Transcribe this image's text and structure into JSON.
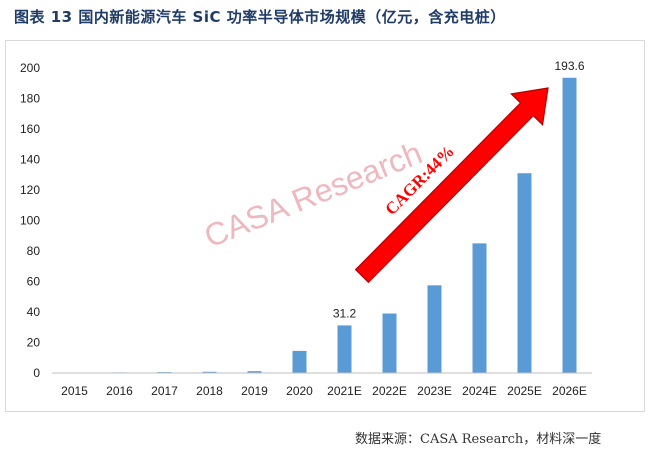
{
  "title": "图表 13 国内新能源汽车 SiC 功率半导体市场规模（亿元，含充电桩）",
  "source": "数据来源：CASA Research，材料深一度",
  "watermark": "CASA Research",
  "chart_data": {
    "type": "bar",
    "categories": [
      "2015",
      "2016",
      "2017",
      "2018",
      "2019",
      "2020",
      "2021E",
      "2022E",
      "2023E",
      "2024E",
      "2025E",
      "2026E"
    ],
    "values": [
      0,
      0.4,
      0.6,
      0.8,
      1.2,
      14.5,
      31.2,
      39,
      57.5,
      85,
      131,
      193.6
    ],
    "data_labels": {
      "6": "31.2",
      "11": "193.6"
    },
    "ylim": [
      0,
      200
    ],
    "yticks": [
      0,
      20,
      40,
      60,
      80,
      100,
      120,
      140,
      160,
      180,
      200
    ],
    "bar_color": "#5b9bd5",
    "grid": false,
    "annotation": {
      "text": "CAGR:44%",
      "arrow_color": "#ff0000"
    }
  }
}
